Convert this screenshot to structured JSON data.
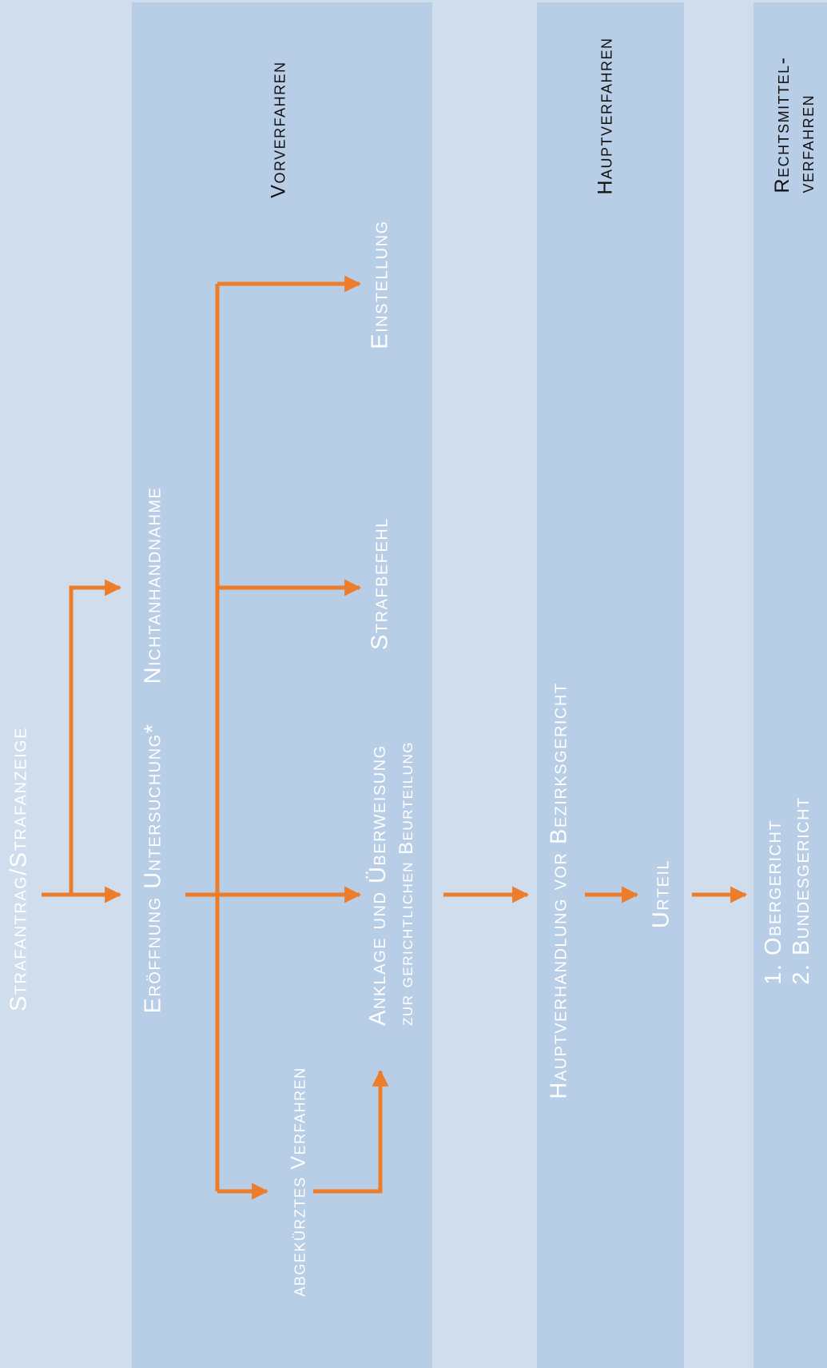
{
  "diagram": {
    "phases": {
      "vorverfahren": "Vorverfahren",
      "hauptverfahren": "Hauptverfahren",
      "rechtsmittel_line1": "Rechtsmittel-",
      "rechtsmittel_line2": "verfahren"
    },
    "nodes": {
      "strafantrag": "Strafantrag/Strafanzeige",
      "nichtanhandnahme": "Nichtanhandnahme",
      "eroeffnung": "Eröffnung Untersuchung*",
      "einstellung": "Einstellung",
      "strafbefehl": "Strafbefehl",
      "anklage_line1": "Anklage und Überweisung",
      "anklage_line2": "zur gerichtlichen Beurteilung",
      "abgekuerztes": "abgekürztes Verfahren",
      "hauptverhandlung": "Hauptverhandlung vor Bezirksgericht",
      "urteil": "Urteil",
      "obergericht": "1.  Obergericht",
      "bundesgericht": "2.  Bundesgericht"
    },
    "colors": {
      "background": "#cfdded",
      "band": "#b8cde6",
      "arrow": "#ee7d2b",
      "node_text": "#ffffff",
      "phase_text": "#111111"
    }
  }
}
